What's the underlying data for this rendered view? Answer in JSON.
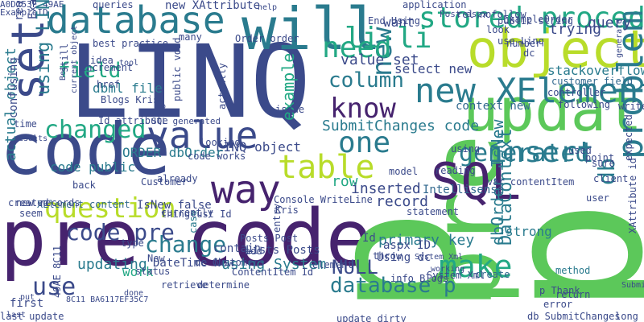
{
  "palette": {
    "navy": "#3b4a8a",
    "teal": "#2a7b8e",
    "green": "#5cc85a",
    "lime": "#b8dc2a",
    "purple": "#46236e",
    "sea": "#22a884",
    "blue": "#31688e"
  },
  "words": [
    "LINQ",
    "pre",
    "code",
    "pre code",
    "p",
    "update",
    "object",
    "database",
    "will",
    "set",
    "SQL",
    "value",
    "new XElement",
    "new",
    "stored procedure",
    "li li",
    "know",
    "table",
    "one",
    "question",
    "way",
    "insert",
    "problem",
    "changed",
    "need",
    "column",
    "generated",
    "make",
    "field",
    "code pre",
    "change",
    "database p",
    "NULL",
    "primary key",
    "dbOrder IsNew",
    "db",
    "row",
    "stackoverflow",
    "query",
    "trying",
    "want",
    "value set",
    "select new",
    "SubmitChanges code",
    "record",
    "inserted",
    "LINQ object",
    "context new",
    "strong",
    "example",
    "DataContext",
    "new XAttribute",
    "A0D253F 49AE",
    "ExampleID",
    "queries",
    "application",
    "rel nofollow",
    "ExampleOrder",
    "using LINQ",
    "dbml file",
    "Blogs Kris",
    "SQL generated",
    "Id attribute",
    "code public",
    "ORDER dbOrder",
    "code works",
    "actual object",
    "updating",
    "DateTime Now",
    "Lists Posts",
    "using System",
    "contain",
    "aspx ID",
    "Using dc",
    "Intellisense",
    "Post aspx",
    "public string",
    "customer field",
    "XAttribute id",
    "db SubmitChanges",
    "last update",
    "first",
    "use",
    "49AE 8C11",
    "8C11 BA6117EF35C7",
    "XElement content",
    "IsNew false",
    "cust Id",
    "dc Customers",
    "p Thank",
    "return",
    "error",
    "method",
    "long",
    "Submit",
    "write",
    "work",
    "New",
    "status",
    "retrieve",
    "determine",
    "type",
    "Id",
    "Kris",
    "Console WriteLine",
    "model",
    "statement",
    "throw",
    "create",
    "Posts Post",
    "ContentItem Id",
    "update dirty",
    "info Blogs",
    "var contentItem",
    "reading",
    "using",
    "user",
    "point",
    "client",
    "sure",
    "used",
    "following",
    "controller",
    "look",
    "use Linq",
    "number",
    "many",
    "best practice",
    "idea",
    "increment",
    "href",
    "tool",
    "Bet",
    "still",
    "current object",
    "read",
    "ExampleId",
    "confusing",
    "time",
    "results",
    "new records",
    "seem",
    "created",
    "put",
    "last",
    "done",
    "add",
    "element",
    "entry",
    "case",
    "looking",
    "thing",
    "already",
    "currently",
    "back",
    "Customer",
    "public void",
    "actually",
    "issue",
    "Order order",
    "End Using",
    "help",
    "System Xml",
    "dc",
    "p",
    "working",
    "generate",
    "expected",
    "data context"
  ]
}
